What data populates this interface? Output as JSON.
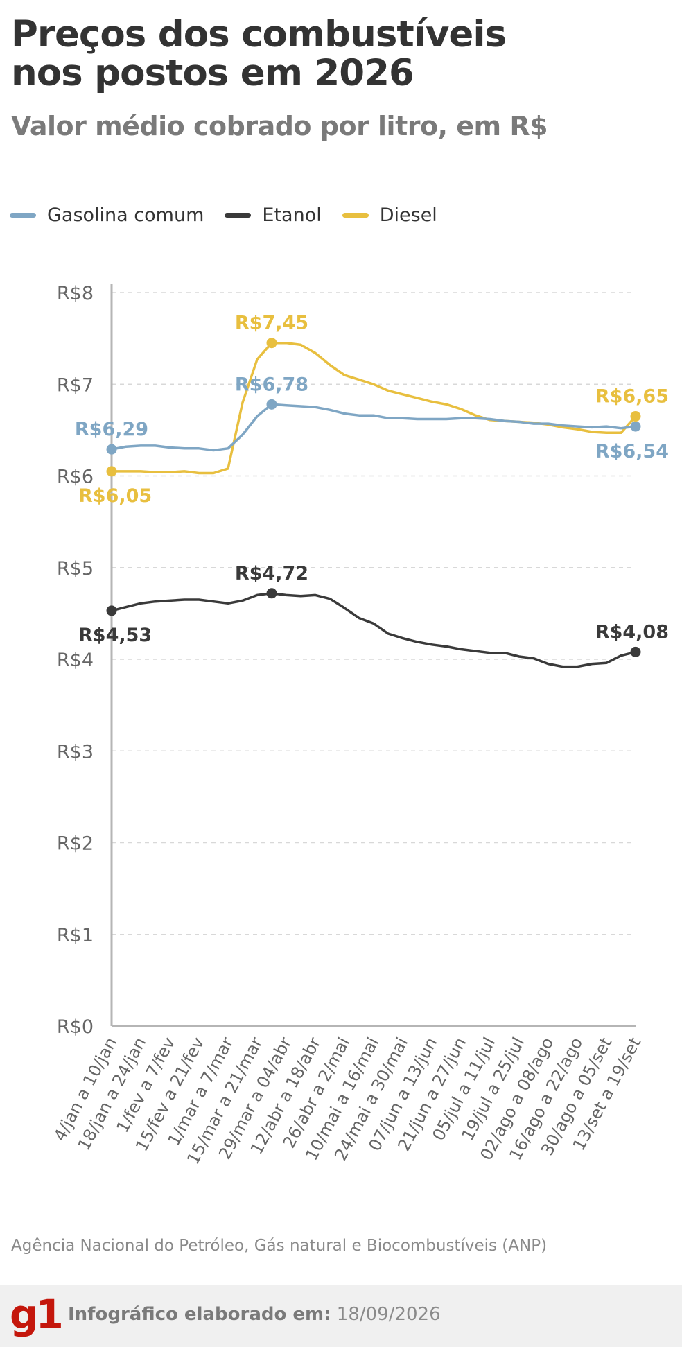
{
  "header": {
    "title_line1": "Preços dos combustíveis",
    "title_line2": "nos postos em 2026",
    "subtitle": "Valor médio cobrado por litro, em R$"
  },
  "legend": [
    {
      "label": "Gasolina comum",
      "color": "#7fa6c4"
    },
    {
      "label": "Etanol",
      "color": "#3a3a3a"
    },
    {
      "label": "Diesel",
      "color": "#e8bf3f"
    }
  ],
  "chart_data": {
    "type": "line",
    "ylim": [
      0,
      8
    ],
    "yticks": [
      "R$0",
      "R$1",
      "R$2",
      "R$3",
      "R$4",
      "R$5",
      "R$6",
      "R$7",
      "R$8"
    ],
    "grid": true,
    "legend_position": "top-left",
    "categories": [
      "4/jan a 10/jan",
      "",
      "18/jan a 24/jan",
      "",
      "1/fev a 7/fev",
      "",
      "15/fev a 21/fev",
      "",
      "1/mar a 7/mar",
      "",
      "15/mar a 21/mar",
      "",
      "29/mar a 04/abr",
      "",
      "12/abr a 18/abr",
      "",
      "26/abr a 2/mai",
      "",
      "10/mai a 16/mai",
      "",
      "24/mai a 30/mai",
      "",
      "07/jun a 13/jun",
      "",
      "21/jun a 27/jun",
      "",
      "05/jul a 11/jul",
      "",
      "19/jul a 25/jul",
      "",
      "02/ago a 08/ago",
      "",
      "16/ago a 22/ago",
      "",
      "30/ago a 05/set",
      "",
      "13/set a 19/set"
    ],
    "series": [
      {
        "name": "Gasolina comum",
        "color": "#7fa6c4",
        "values": [
          6.29,
          6.32,
          6.33,
          6.33,
          6.31,
          6.3,
          6.3,
          6.28,
          6.3,
          6.45,
          6.65,
          6.78,
          6.77,
          6.76,
          6.75,
          6.72,
          6.68,
          6.66,
          6.66,
          6.63,
          6.63,
          6.62,
          6.62,
          6.62,
          6.63,
          6.63,
          6.62,
          6.6,
          6.59,
          6.57,
          6.57,
          6.55,
          6.54,
          6.53,
          6.54,
          6.52,
          6.54
        ],
        "start_label": "R$6,29",
        "peak_label": "R$6,78",
        "end_label": "R$6,54"
      },
      {
        "name": "Etanol",
        "color": "#3a3a3a",
        "values": [
          4.53,
          4.57,
          4.61,
          4.63,
          4.64,
          4.65,
          4.65,
          4.63,
          4.61,
          4.64,
          4.7,
          4.72,
          4.7,
          4.69,
          4.7,
          4.66,
          4.56,
          4.45,
          4.39,
          4.28,
          4.23,
          4.19,
          4.16,
          4.14,
          4.11,
          4.09,
          4.07,
          4.07,
          4.03,
          4.01,
          3.95,
          3.92,
          3.92,
          3.95,
          3.96,
          4.04,
          4.08
        ],
        "start_label": "R$4,53",
        "peak_label": "R$4,72",
        "end_label": "R$4,08"
      },
      {
        "name": "Diesel",
        "color": "#e8bf3f",
        "values": [
          6.05,
          6.05,
          6.05,
          6.04,
          6.04,
          6.05,
          6.03,
          6.03,
          6.08,
          6.8,
          7.27,
          7.45,
          7.45,
          7.43,
          7.34,
          7.21,
          7.1,
          7.05,
          7.0,
          6.93,
          6.89,
          6.85,
          6.81,
          6.78,
          6.73,
          6.66,
          6.61,
          6.6,
          6.59,
          6.58,
          6.56,
          6.53,
          6.51,
          6.48,
          6.47,
          6.47,
          6.65
        ],
        "start_label": "R$6,05",
        "peak_label": "R$7,45",
        "end_label": "R$6,65"
      }
    ]
  },
  "source": "Agência Nacional do Petróleo, Gás natural e Biocombustíveis (ANP)",
  "footer": {
    "logo": "g1",
    "label": "Infográfico elaborado em:",
    "date": "18/09/2026"
  }
}
